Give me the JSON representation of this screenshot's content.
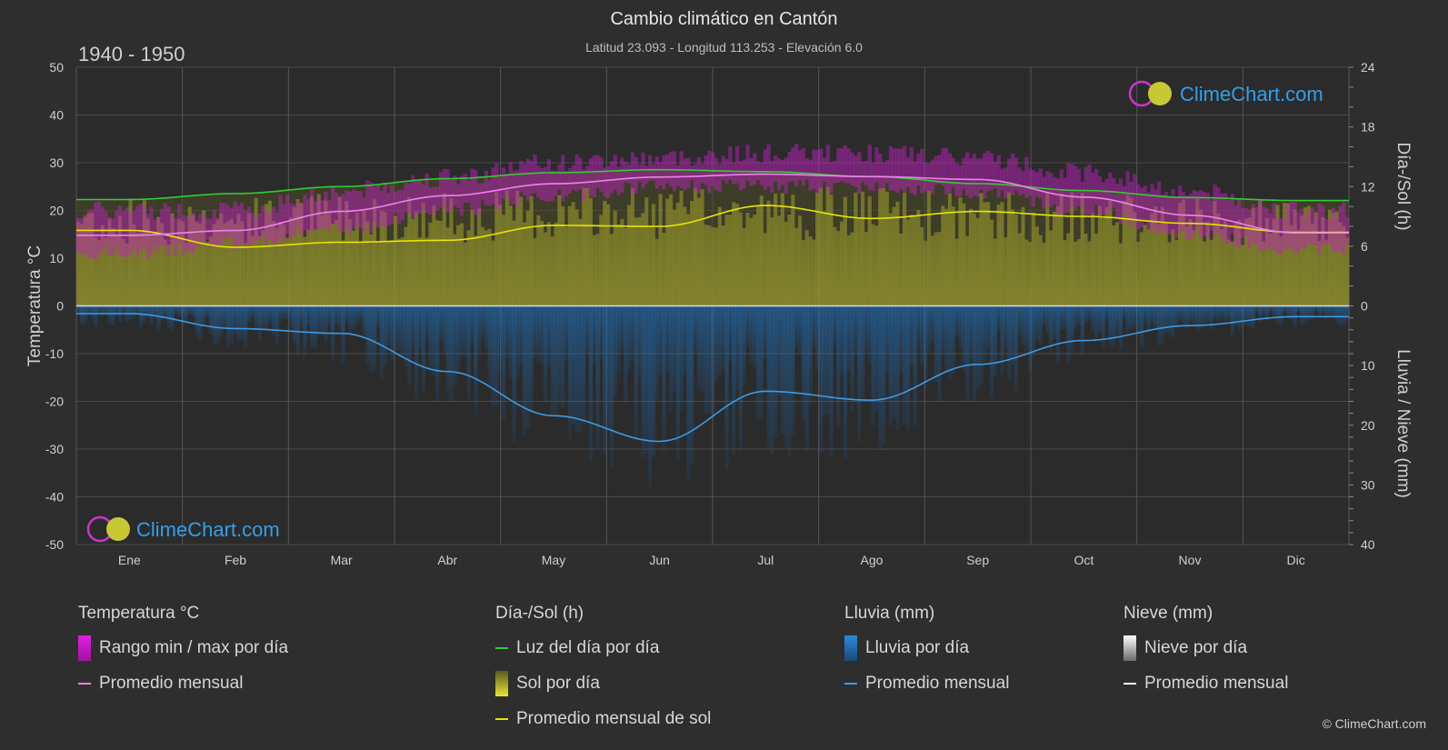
{
  "header": {
    "title": "Cambio climático en Cantón",
    "subtitle": "Latitud 23.093 - Longitud 113.253 - Elevación 6.0",
    "period": "1940 - 1950"
  },
  "watermark": {
    "brand": "ClimeChart.com",
    "copyright": "© ClimeChart.com"
  },
  "chart_data": {
    "type": "area",
    "x": [
      "Ene",
      "Feb",
      "Mar",
      "Abr",
      "May",
      "Jun",
      "Jul",
      "Ago",
      "Sep",
      "Oct",
      "Nov",
      "Dic"
    ],
    "ylabel_left": "Temperatura °C",
    "ylabel_right_top": "Día-/Sol (h)",
    "ylabel_right_bottom": "Lluvia / Nieve (mm)",
    "ylim_left": [
      -50,
      50
    ],
    "ylim_right_top": [
      0,
      24
    ],
    "ylim_right_bottom": [
      0,
      40
    ],
    "left_ticks": [
      "50",
      "40",
      "30",
      "20",
      "10",
      "0",
      "-10",
      "-20",
      "-30",
      "-40",
      "-50"
    ],
    "right_top_ticks": [
      "24",
      "18",
      "12",
      "6",
      "0"
    ],
    "right_bottom_ticks": [
      "10",
      "20",
      "30",
      "40"
    ],
    "grid": true,
    "series": [
      {
        "name": "Promedio mensual",
        "group": "Temperatura °C",
        "color": "#ee82ee",
        "values": [
          14.8,
          15.8,
          19.8,
          23.1,
          25.6,
          27.0,
          27.6,
          27.1,
          26.5,
          22.8,
          19.0,
          15.3
        ]
      },
      {
        "name": "Rango min / max por día",
        "group": "Temperatura °C",
        "color": "#d700d7",
        "min": [
          11,
          13,
          16,
          20,
          23,
          25,
          25,
          25,
          24,
          20,
          15,
          12
        ],
        "max": [
          20,
          20,
          24,
          27,
          30,
          31,
          32,
          32,
          31,
          28,
          24,
          20
        ]
      },
      {
        "name": "Luz del día por día",
        "group": "Día-/Sol (h)",
        "color": "#33cc33",
        "values": [
          10.7,
          11.3,
          12.0,
          12.8,
          13.4,
          13.7,
          13.5,
          13.0,
          12.3,
          11.6,
          10.9,
          10.6
        ]
      },
      {
        "name": "Sol por día",
        "group": "Día-/Sol (h)",
        "color": "#b8b83a",
        "values": [
          11,
          11,
          11.5,
          11.5,
          12,
          12,
          12,
          12,
          11.5,
          11.5,
          10.8,
          10.5
        ]
      },
      {
        "name": "Promedio mensual de sol",
        "group": "Día-/Sol (h)",
        "color": "#e6e600",
        "values": [
          7.6,
          5.9,
          6.4,
          6.6,
          8.1,
          8.0,
          10.1,
          8.8,
          9.5,
          9.0,
          8.3,
          7.4
        ]
      },
      {
        "name": "Lluvia por día",
        "group": "Lluvia (mm)",
        "color": "#1e78c8",
        "values": [
          3,
          6,
          8,
          16,
          22,
          26,
          22,
          22,
          14,
          8,
          5,
          3
        ]
      },
      {
        "name": "Promedio mensual",
        "group": "Lluvia (mm)",
        "color": "#3d9be6",
        "values": [
          1.3,
          3.8,
          4.6,
          11.0,
          18.4,
          22.7,
          14.3,
          15.8,
          9.8,
          5.8,
          3.3,
          1.8
        ]
      },
      {
        "name": "Nieve por día",
        "group": "Nieve (mm)",
        "color": "#ffffff",
        "values": [
          0,
          0,
          0,
          0,
          0,
          0,
          0,
          0,
          0,
          0,
          0,
          0
        ]
      },
      {
        "name": "Promedio mensual",
        "group": "Nieve (mm)",
        "color": "#ffffff",
        "values": [
          0,
          0,
          0,
          0,
          0,
          0,
          0,
          0,
          0,
          0,
          0,
          0
        ]
      }
    ]
  },
  "legend": {
    "temp": {
      "title": "Temperatura °C",
      "range": "Rango min / max por día",
      "avg": "Promedio mensual"
    },
    "sun": {
      "title": "Día-/Sol (h)",
      "daylight": "Luz del día por día",
      "sun": "Sol por día",
      "sun_avg": "Promedio mensual de sol"
    },
    "rain": {
      "title": "Lluvia (mm)",
      "rain": "Lluvia por día",
      "avg": "Promedio mensual"
    },
    "snow": {
      "title": "Nieve (mm)",
      "snow": "Nieve por día",
      "avg": "Promedio mensual"
    }
  }
}
